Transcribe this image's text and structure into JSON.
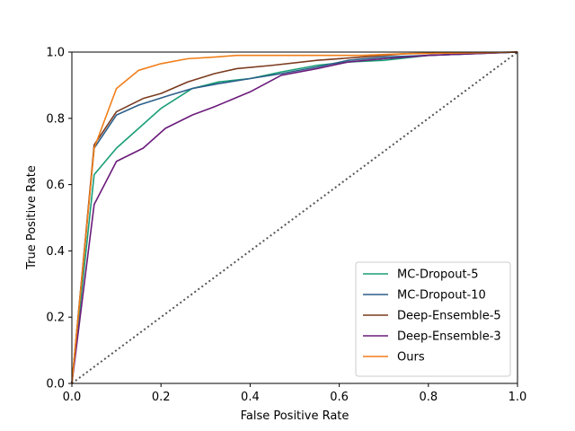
{
  "chart_data": {
    "type": "line",
    "xlabel": "False Positive Rate",
    "ylabel": "True Positive Rate",
    "xlim": [
      0.0,
      1.0
    ],
    "ylim": [
      0.0,
      1.0
    ],
    "xticks": [
      "0.0",
      "0.2",
      "0.4",
      "0.6",
      "0.8",
      "1.0"
    ],
    "yticks": [
      "0.0",
      "0.2",
      "0.4",
      "0.6",
      "0.8",
      "1.0"
    ],
    "grid": false,
    "legend_position": "lower-right",
    "diagonal": {
      "x": [
        0.0,
        1.0
      ],
      "y": [
        0.0,
        1.0
      ],
      "style": "dotted",
      "color": "#555555"
    },
    "series": [
      {
        "name": "MC-Dropout-5",
        "color": "#1a9e77",
        "x": [
          0.0,
          0.05,
          0.1,
          0.15,
          0.2,
          0.27,
          0.33,
          0.4,
          0.47,
          0.55,
          0.62,
          0.7,
          0.8,
          0.9,
          1.0
        ],
        "y": [
          0.0,
          0.63,
          0.71,
          0.77,
          0.83,
          0.89,
          0.91,
          0.92,
          0.94,
          0.96,
          0.97,
          0.975,
          0.99,
          0.995,
          1.0
        ]
      },
      {
        "name": "MC-Dropout-10",
        "color": "#2c5f8a",
        "x": [
          0.0,
          0.05,
          0.1,
          0.15,
          0.22,
          0.27,
          0.33,
          0.4,
          0.47,
          0.55,
          0.62,
          0.7,
          0.8,
          0.9,
          1.0
        ],
        "y": [
          0.0,
          0.71,
          0.81,
          0.84,
          0.87,
          0.89,
          0.905,
          0.92,
          0.935,
          0.955,
          0.975,
          0.985,
          0.99,
          0.995,
          1.0
        ]
      },
      {
        "name": "Deep-Ensemble-5",
        "color": "#7a3b1f",
        "x": [
          0.0,
          0.05,
          0.1,
          0.16,
          0.2,
          0.26,
          0.32,
          0.37,
          0.45,
          0.55,
          0.65,
          0.75,
          0.85,
          1.0
        ],
        "y": [
          0.0,
          0.72,
          0.82,
          0.86,
          0.875,
          0.91,
          0.935,
          0.95,
          0.96,
          0.975,
          0.985,
          0.995,
          0.997,
          1.0
        ]
      },
      {
        "name": "Deep-Ensemble-3",
        "color": "#6a1b7a",
        "x": [
          0.0,
          0.05,
          0.1,
          0.16,
          0.21,
          0.27,
          0.32,
          0.4,
          0.47,
          0.55,
          0.62,
          0.7,
          0.8,
          0.9,
          1.0
        ],
        "y": [
          0.0,
          0.54,
          0.67,
          0.71,
          0.77,
          0.81,
          0.835,
          0.88,
          0.93,
          0.95,
          0.97,
          0.98,
          0.99,
          0.995,
          1.0
        ]
      },
      {
        "name": "Ours",
        "color": "#f07f1a",
        "x": [
          0.0,
          0.05,
          0.1,
          0.15,
          0.2,
          0.26,
          0.32,
          0.37,
          0.45,
          0.55,
          0.65,
          0.75,
          0.85,
          1.0
        ],
        "y": [
          0.0,
          0.71,
          0.89,
          0.945,
          0.965,
          0.98,
          0.985,
          0.99,
          0.99,
          0.99,
          0.99,
          0.995,
          0.997,
          1.0
        ]
      }
    ]
  }
}
